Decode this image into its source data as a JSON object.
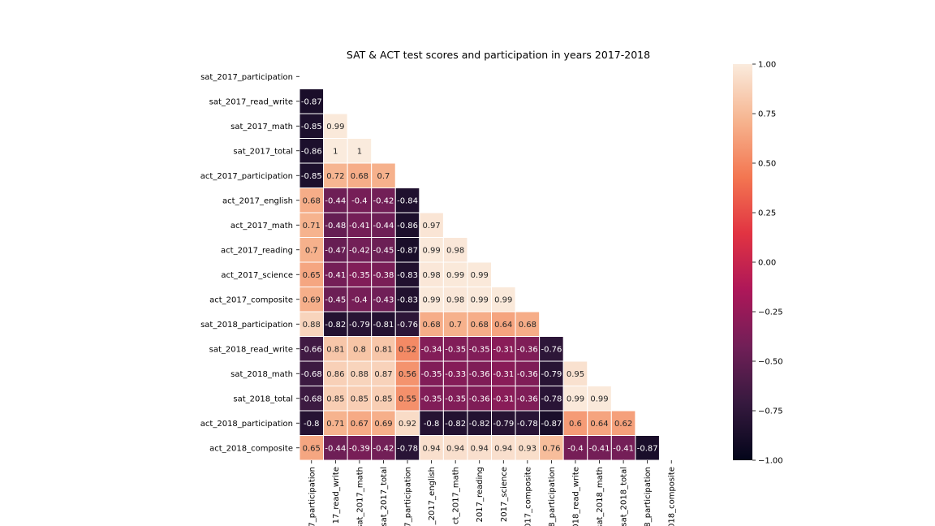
{
  "chart_data": {
    "type": "heatmap",
    "title": "SAT & ACT test scores and participation in years 2017-2018",
    "mask": "upper-triangle",
    "labels": [
      "sat_2017_participation",
      "sat_2017_read_write",
      "sat_2017_math",
      "sat_2017_total",
      "act_2017_participation",
      "act_2017_english",
      "act_2017_math",
      "act_2017_reading",
      "act_2017_science",
      "act_2017_composite",
      "sat_2018_participation",
      "sat_2018_read_write",
      "sat_2018_math",
      "sat_2018_total",
      "act_2018_participation",
      "act_2018_composite"
    ],
    "x_tick_labels_visible": [
      "7_participation",
      "17_read_write",
      "sat_2017_math",
      "sat_2017_total",
      "7_participation",
      "_2017_english",
      "ct_2017_math",
      "2017_reading",
      "2017_science",
      "017_composite",
      "8_participation",
      "018_read_write",
      "sat_2018_math",
      "sat_2018_total",
      "8_participation",
      "018_composite"
    ],
    "values": [
      [],
      [
        -0.87
      ],
      [
        -0.85,
        0.99
      ],
      [
        -0.86,
        1,
        1
      ],
      [
        -0.85,
        0.72,
        0.68,
        0.7
      ],
      [
        0.68,
        -0.44,
        -0.4,
        -0.42,
        -0.84
      ],
      [
        0.71,
        -0.48,
        -0.41,
        -0.44,
        -0.86,
        0.97
      ],
      [
        0.7,
        -0.47,
        -0.42,
        -0.45,
        -0.87,
        0.99,
        0.98
      ],
      [
        0.65,
        -0.41,
        -0.35,
        -0.38,
        -0.83,
        0.98,
        0.99,
        0.99
      ],
      [
        0.69,
        -0.45,
        -0.4,
        -0.43,
        -0.83,
        0.99,
        0.98,
        0.99,
        0.99
      ],
      [
        0.88,
        -0.82,
        -0.79,
        -0.81,
        -0.76,
        0.68,
        0.7,
        0.68,
        0.64,
        0.68
      ],
      [
        -0.66,
        0.81,
        0.8,
        0.81,
        0.52,
        -0.34,
        -0.35,
        -0.35,
        -0.31,
        -0.36,
        -0.76
      ],
      [
        -0.68,
        0.86,
        0.88,
        0.87,
        0.56,
        -0.35,
        -0.33,
        -0.36,
        -0.31,
        -0.36,
        -0.79,
        0.95
      ],
      [
        -0.68,
        0.85,
        0.85,
        0.85,
        0.55,
        -0.35,
        -0.35,
        -0.36,
        -0.31,
        -0.36,
        -0.78,
        0.99,
        0.99
      ],
      [
        -0.8,
        0.71,
        0.67,
        0.69,
        0.92,
        -0.8,
        -0.82,
        -0.82,
        -0.79,
        -0.78,
        -0.87,
        0.6,
        0.64,
        0.62
      ],
      [
        0.65,
        -0.44,
        -0.39,
        -0.42,
        -0.78,
        0.94,
        0.94,
        0.94,
        0.94,
        0.93,
        0.76,
        -0.4,
        -0.41,
        -0.41,
        -0.87
      ]
    ],
    "vmin": -1,
    "vmax": 1,
    "colormap": "rocket",
    "colorbar_ticks": [
      "1.00",
      "0.75",
      "0.50",
      "0.25",
      "0.00",
      "−0.25",
      "−0.50",
      "−0.75",
      "−1.00"
    ],
    "colorbar_tick_values": [
      1,
      0.75,
      0.5,
      0.25,
      0,
      -0.25,
      -0.5,
      -0.75,
      -1
    ],
    "colormap_stops": [
      "#03051a",
      "#35193e",
      "#701f57",
      "#ad1759",
      "#e13342",
      "#f37651",
      "#f6b48f",
      "#faebdd"
    ]
  }
}
